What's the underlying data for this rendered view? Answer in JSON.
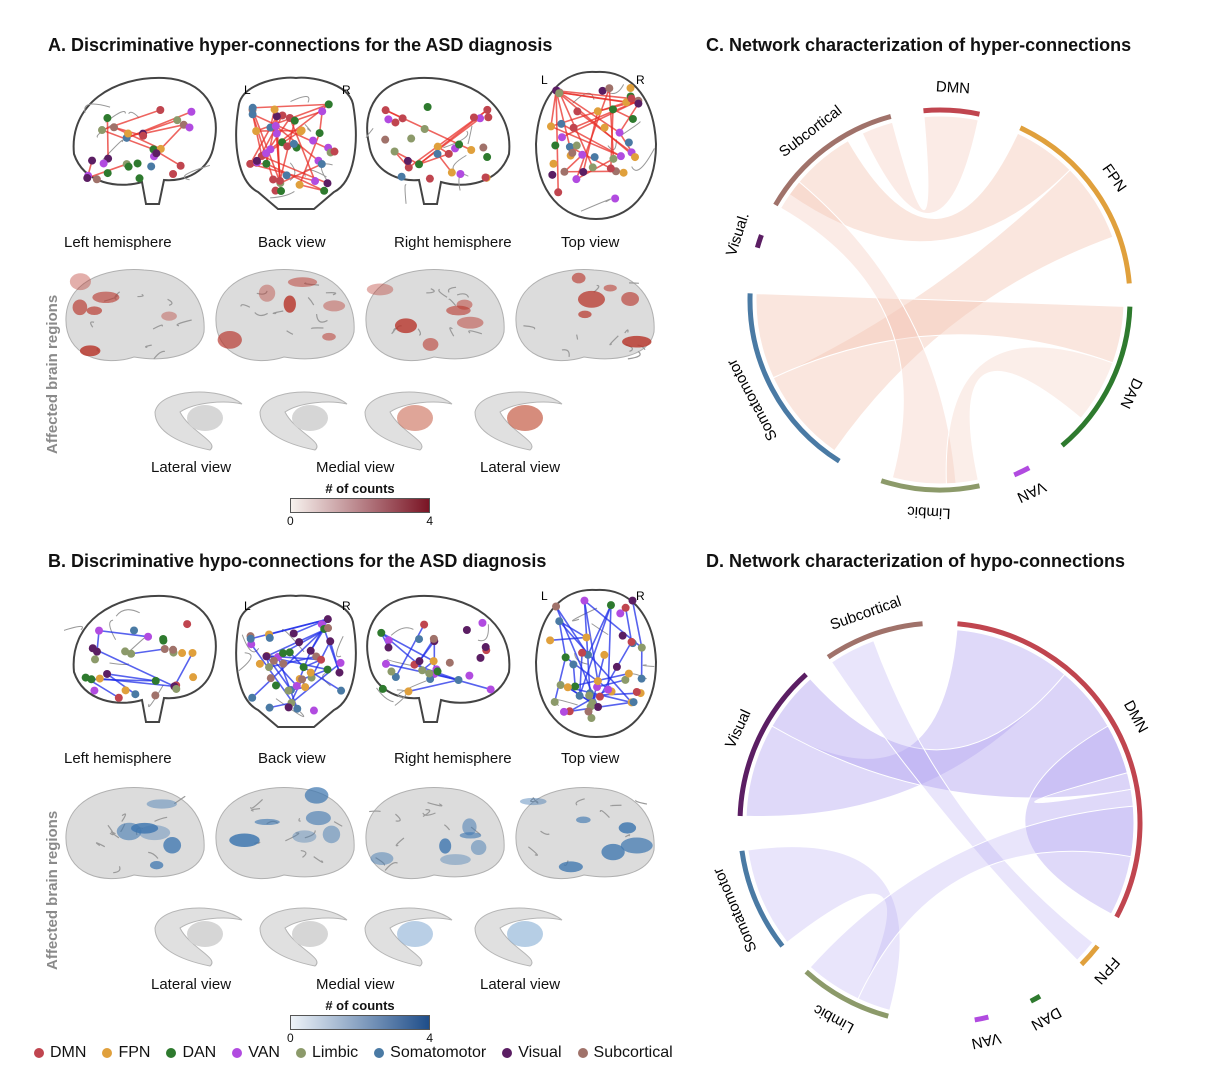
{
  "panels": {
    "A": {
      "title": "A. Discriminative hyper-connections for the ASD diagnosis",
      "views": [
        "Left hemisphere",
        "Back view",
        "Right hemisphere",
        "Top view"
      ],
      "side_labels": {
        "L": "L",
        "R": "R"
      },
      "row_label": "Affected brain regions",
      "subcortical_views": [
        "Lateral view",
        "Medial view",
        "Lateral view"
      ],
      "colorbar": {
        "title": "# of counts",
        "min": "0",
        "max": "4",
        "low": "#f7f2ee",
        "high": "#7a1424"
      },
      "edge_color": "#e8302a"
    },
    "B": {
      "title": "B. Discriminative hypo-connections for the ASD diagnosis",
      "views": [
        "Left hemisphere",
        "Back view",
        "Right hemisphere",
        "Top view"
      ],
      "side_labels": {
        "L": "L",
        "R": "R"
      },
      "row_label": "Affected brain regions",
      "subcortical_views": [
        "Lateral view",
        "Medial view",
        "Lateral view"
      ],
      "colorbar": {
        "title": "# of counts",
        "min": "0",
        "max": "4",
        "low": "#eef3f8",
        "high": "#1f4e8a"
      },
      "edge_color": "#1f2ee8"
    },
    "C": {
      "title": "C. Network characterization of hyper-connections",
      "networks": [
        "DMN",
        "FPN",
        "DAN",
        "VAN",
        "Limbic",
        "Somatomotor",
        "Visual.",
        "Subcortical"
      ],
      "ribbon_color": "#f3c7b6"
    },
    "D": {
      "title": "D. Network characterization of hypo-connections",
      "networks": [
        "DMN",
        "FPN",
        "DAN",
        "VAN",
        "Limbic",
        "Somatomotor",
        "Visual",
        "Subcortical"
      ],
      "ribbon_color": "#b7aaf2"
    }
  },
  "legend": [
    {
      "label": "DMN",
      "color": "#c0454f"
    },
    {
      "label": "FPN",
      "color": "#e0a03c"
    },
    {
      "label": "DAN",
      "color": "#2e7a2e"
    },
    {
      "label": "VAN",
      "color": "#b14be0"
    },
    {
      "label": "Limbic",
      "color": "#8c9a6a"
    },
    {
      "label": "Somatomotor",
      "color": "#4a7aa4"
    },
    {
      "label": "Visual",
      "color": "#5b1e63"
    },
    {
      "label": "Subcortical",
      "color": "#a0726a"
    }
  ]
}
